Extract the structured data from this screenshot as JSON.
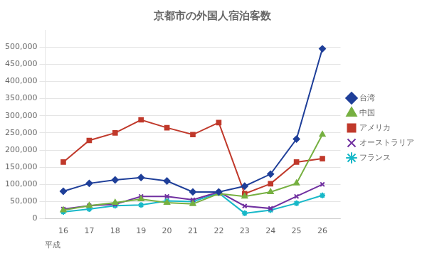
{
  "chart_data": {
    "type": "line",
    "title": "京都市の外国人宿泊客数",
    "xlabel": "平成",
    "x": [
      16,
      17,
      18,
      19,
      20,
      21,
      22,
      23,
      24,
      25,
      26
    ],
    "series": [
      {
        "name": "台湾",
        "color": "#1f3f99",
        "marker": "diamond",
        "values": [
          80000,
          103000,
          113000,
          120000,
          110000,
          78000,
          78000,
          95000,
          130000,
          232000,
          495000
        ]
      },
      {
        "name": "中国",
        "color": "#76b041",
        "marker": "triangle",
        "values": [
          25000,
          38000,
          47000,
          57000,
          47000,
          43000,
          73000,
          65000,
          78000,
          103000,
          245000
        ]
      },
      {
        "name": "アメリカ",
        "color": "#c0392b",
        "marker": "square",
        "values": [
          165000,
          228000,
          250000,
          288000,
          265000,
          245000,
          280000,
          73000,
          102000,
          165000,
          175000
        ]
      },
      {
        "name": "オーストラリア",
        "color": "#7030a0",
        "marker": "x",
        "values": [
          28000,
          38000,
          42000,
          65000,
          65000,
          55000,
          78000,
          37000,
          30000,
          65000,
          100000
        ]
      },
      {
        "name": "フランス",
        "color": "#17b8c8",
        "marker": "star",
        "values": [
          20000,
          28000,
          38000,
          40000,
          52000,
          50000,
          75000,
          16000,
          25000,
          45000,
          68000
        ]
      }
    ],
    "xlim": [
      15.3,
      26.7
    ],
    "xticks": [
      16,
      17,
      18,
      19,
      20,
      21,
      22,
      23,
      24,
      25,
      26
    ],
    "ylim": [
      0,
      550000
    ],
    "yticks": [
      0,
      {
        "value": 50000,
        "label": "50,000"
      },
      {
        "value": 100000,
        "label": "100,000"
      },
      {
        "value": 150000,
        "label": "150,000"
      },
      {
        "value": 200000,
        "label": "200,000"
      },
      {
        "value": 250000,
        "label": "250,000"
      },
      {
        "value": 300000,
        "label": "300,000"
      },
      {
        "value": 350000,
        "label": "350,000"
      },
      {
        "value": 400000,
        "label": "400,000"
      },
      {
        "value": 450000,
        "label": "450,000"
      },
      {
        "value": 500000,
        "label": "500,000"
      }
    ],
    "grid": "y",
    "legend": "right"
  }
}
